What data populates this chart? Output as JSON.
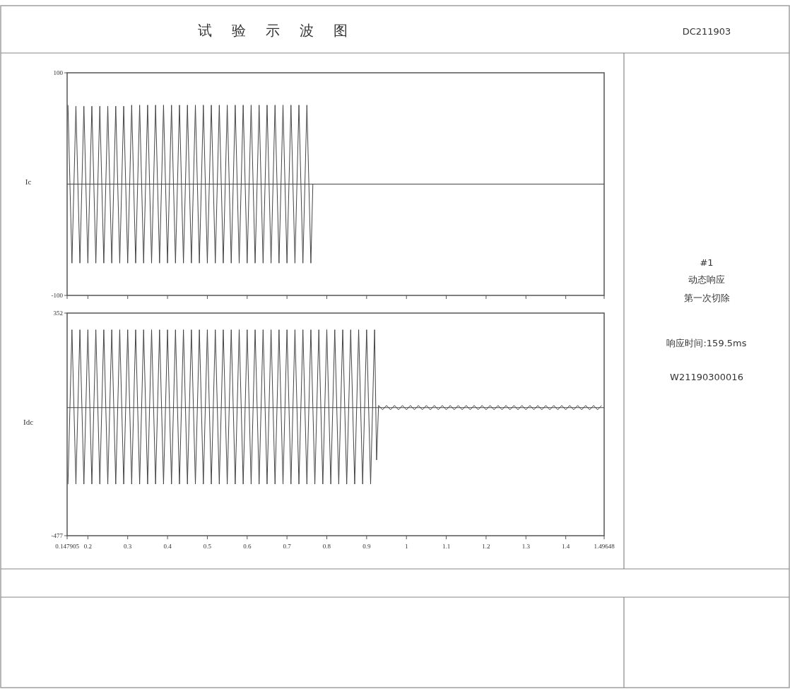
{
  "chart_data": [
    {
      "type": "line",
      "title": "试验示波图",
      "ylabel": "Ic",
      "xlim": [
        0.147905,
        1.49648
      ],
      "xticks": [
        0.147905,
        0.2,
        0.3,
        0.4,
        0.5,
        0.6,
        0.7,
        0.8,
        0.9,
        1,
        1.1,
        1.2,
        1.3,
        1.4,
        1.49648
      ],
      "ylim": [
        -100,
        100
      ],
      "yticks": [
        -100,
        100
      ],
      "tick_labels": "y",
      "grid": false,
      "marker": "none",
      "line_style": "solid",
      "ref_lines": [
        {
          "axis": "y",
          "value": 0,
          "color": "#444444"
        }
      ],
      "annotations": [
        "DC211903",
        "#1",
        "动态响应",
        "第一次切除",
        "响应时间:159.5ms",
        "W21190300016"
      ],
      "series": [
        {
          "color": "#444444",
          "x": [
            0.15,
            0.16,
            0.17,
            0.18,
            0.19,
            0.2,
            0.21,
            0.22,
            0.23,
            0.24,
            0.25,
            0.26,
            0.27,
            0.28,
            0.29,
            0.3,
            0.31,
            0.32,
            0.33,
            0.34,
            0.35,
            0.36,
            0.37,
            0.38,
            0.39,
            0.4,
            0.41,
            0.42,
            0.43,
            0.44,
            0.45,
            0.46,
            0.47,
            0.48,
            0.49,
            0.5,
            0.51,
            0.52,
            0.53,
            0.54,
            0.55,
            0.56,
            0.57,
            0.58,
            0.59,
            0.6,
            0.61,
            0.62,
            0.63,
            0.64,
            0.65,
            0.66,
            0.67,
            0.68,
            0.69,
            0.7,
            0.71,
            0.72,
            0.73,
            0.74,
            0.75,
            0.76,
            0.765,
            1.49648
          ],
          "values": [
            71,
            -71,
            70,
            -71,
            70,
            -71,
            70,
            -71,
            70,
            -71,
            70,
            -71,
            70,
            -71,
            70,
            -71,
            71,
            -71,
            71,
            -71,
            71,
            -71,
            71,
            -71,
            71,
            -71,
            71,
            -71,
            71,
            -71,
            71,
            -71,
            71,
            -71,
            71,
            -71,
            71,
            -71,
            71,
            -71,
            71,
            -71,
            71,
            -71,
            71,
            -71,
            71,
            -71,
            71,
            -71,
            71,
            -71,
            71,
            -71,
            71,
            -71,
            71,
            -71,
            71,
            -71,
            71,
            -71,
            0,
            0
          ]
        }
      ]
    },
    {
      "type": "line",
      "ylabel": "Idc",
      "xlim": [
        0.147905,
        1.49648
      ],
      "xticks": [
        0.147905,
        0.2,
        0.3,
        0.4,
        0.5,
        0.6,
        0.7,
        0.8,
        0.9,
        1,
        1.1,
        1.2,
        1.3,
        1.4,
        1.49648
      ],
      "ylim": [
        -477,
        352
      ],
      "yticks": [
        -477,
        352
      ],
      "grid": false,
      "marker": "none",
      "line_style": "solid",
      "ref_lines": [
        {
          "axis": "y",
          "value": 0,
          "color": "#444444"
        }
      ],
      "series": [
        {
          "color": "#444444",
          "x": [
            0.15,
            0.16,
            0.17,
            0.18,
            0.19,
            0.2,
            0.21,
            0.22,
            0.23,
            0.24,
            0.25,
            0.26,
            0.27,
            0.28,
            0.29,
            0.3,
            0.31,
            0.32,
            0.33,
            0.34,
            0.35,
            0.36,
            0.37,
            0.38,
            0.39,
            0.4,
            0.41,
            0.42,
            0.43,
            0.44,
            0.45,
            0.46,
            0.47,
            0.48,
            0.49,
            0.5,
            0.51,
            0.52,
            0.53,
            0.54,
            0.55,
            0.56,
            0.57,
            0.58,
            0.59,
            0.6,
            0.61,
            0.62,
            0.63,
            0.64,
            0.65,
            0.66,
            0.67,
            0.68,
            0.69,
            0.7,
            0.71,
            0.72,
            0.73,
            0.74,
            0.75,
            0.76,
            0.77,
            0.78,
            0.79,
            0.8,
            0.81,
            0.82,
            0.83,
            0.84,
            0.85,
            0.86,
            0.87,
            0.88,
            0.89,
            0.9,
            0.91,
            0.92,
            0.925,
            0.93,
            0.94,
            0.95,
            0.96,
            0.97,
            0.98,
            0.99,
            1,
            1.01,
            1.02,
            1.03,
            1.04,
            1.05,
            1.06,
            1.07,
            1.08,
            1.09,
            1.1,
            1.11,
            1.12,
            1.13,
            1.14,
            1.15,
            1.16,
            1.17,
            1.18,
            1.19,
            1.2,
            1.21,
            1.22,
            1.23,
            1.24,
            1.25,
            1.26,
            1.27,
            1.28,
            1.29,
            1.3,
            1.31,
            1.32,
            1.33,
            1.34,
            1.35,
            1.36,
            1.37,
            1.38,
            1.39,
            1.4,
            1.41,
            1.42,
            1.43,
            1.44,
            1.45,
            1.46,
            1.47,
            1.48,
            1.49
          ],
          "values": [
            -285,
            290,
            -285,
            290,
            -285,
            290,
            -285,
            290,
            -285,
            290,
            -285,
            290,
            -285,
            290,
            -285,
            290,
            -285,
            290,
            -285,
            290,
            -285,
            290,
            -285,
            290,
            -285,
            290,
            -285,
            290,
            -285,
            290,
            -285,
            290,
            -285,
            290,
            -285,
            290,
            -285,
            290,
            -285,
            290,
            -285,
            290,
            -285,
            290,
            -285,
            290,
            -285,
            290,
            -285,
            290,
            -285,
            290,
            -285,
            290,
            -285,
            290,
            -285,
            290,
            -285,
            290,
            -285,
            290,
            -285,
            290,
            -285,
            290,
            -285,
            290,
            -285,
            290,
            -285,
            290,
            -285,
            290,
            -285,
            290,
            -285,
            290,
            -195,
            8,
            -8,
            8,
            -8,
            8,
            -8,
            8,
            -8,
            8,
            -8,
            8,
            -8,
            8,
            -8,
            8,
            -8,
            8,
            -8,
            8,
            -8,
            8,
            -8,
            8,
            -8,
            8,
            -8,
            8,
            -8,
            8,
            -8,
            8,
            -8,
            8,
            -8,
            8,
            -8,
            8,
            -8,
            8,
            -8,
            8,
            -8,
            8,
            -8,
            8,
            -8,
            8,
            -8,
            8,
            -8,
            8,
            -8,
            8,
            -8,
            8,
            -8,
            8
          ]
        }
      ]
    }
  ]
}
